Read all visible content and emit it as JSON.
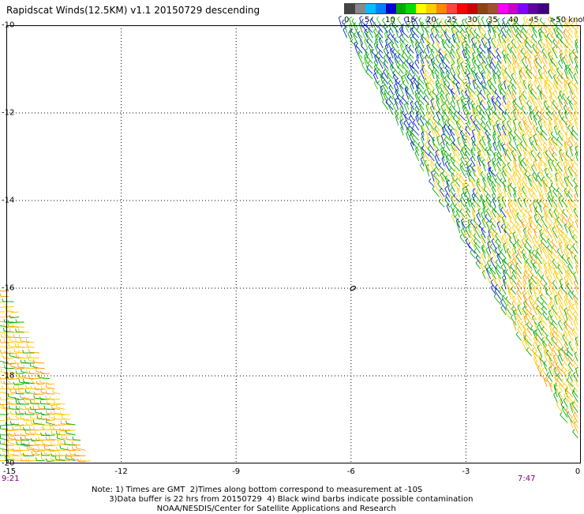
{
  "title": "Rapidscat Winds(12.5KM) v1.1 20150729 descending",
  "legend": {
    "labels": [
      "0",
      "5",
      "10",
      "15",
      "20",
      "25",
      "30",
      "35",
      "40",
      "45",
      ">50 knots"
    ],
    "colors": [
      "#444444",
      "#888888",
      "#00bfff",
      "#0080ff",
      "#0000cc",
      "#00aa00",
      "#00dd00",
      "#ffff00",
      "#ffcc00",
      "#ff8800",
      "#ff4444",
      "#ff0000",
      "#cc0000",
      "#8b4513",
      "#a0522d",
      "#ff00ff",
      "#cc00cc",
      "#8000ff",
      "#6000a0",
      "#400080"
    ]
  },
  "axes": {
    "x_ticks": [
      "-15",
      "-12",
      "-9",
      "-6",
      "-3",
      "0"
    ],
    "y_ticks": [
      "-10",
      "-12",
      "-14",
      "-16",
      "-18",
      "-20"
    ]
  },
  "times": {
    "left": "9:21",
    "right": "7:47"
  },
  "notes": [
    "Note: 1) Times are GMT  2)Times along bottom correspond to measurement at -10S",
    "       3)Data buffer is 22 hrs from 20150729  4) Black wind barbs indicate possible contamination",
    "                          NOAA/NESDIS/Center for Satellite Applications and Research"
  ],
  "chart_data": {
    "type": "wind-barb map",
    "xlim": [
      -15,
      0
    ],
    "ylim": [
      -20,
      -10
    ],
    "grid": true,
    "swaths": [
      {
        "name": "right swath",
        "polygon_lonlat": [
          [
            -6.3,
            -10
          ],
          [
            0,
            -10
          ],
          [
            0,
            -19.6
          ]
        ],
        "dominant_speed_knots": "5-25",
        "direction": "southeasterly"
      },
      {
        "name": "left swath",
        "polygon_lonlat": [
          [
            -15,
            -15.9
          ],
          [
            -12.7,
            -20
          ],
          [
            -15,
            -20
          ]
        ],
        "dominant_speed_knots": "15-25",
        "direction": "easterly"
      }
    ],
    "annotation": {
      "text": "o",
      "lon": -5.95,
      "lat": -16
    }
  },
  "style": {
    "grid_color": "#000000",
    "accent_time_color": "#800080"
  }
}
